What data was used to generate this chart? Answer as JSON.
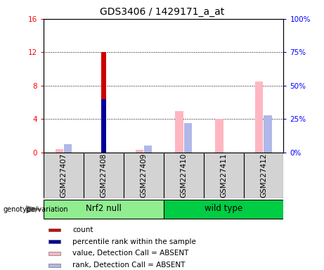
{
  "title": "GDS3406 / 1429171_a_at",
  "samples": [
    "GSM227407",
    "GSM227408",
    "GSM227409",
    "GSM227410",
    "GSM227411",
    "GSM227412"
  ],
  "count_values": [
    0,
    12,
    0,
    0,
    0,
    0
  ],
  "percentile_values": [
    0,
    40.0,
    0,
    0,
    0,
    0
  ],
  "absent_value_values": [
    0.4,
    0,
    0.3,
    5.0,
    4.0,
    8.5
  ],
  "absent_rank_values": [
    6.25,
    0,
    5.0,
    21.875,
    0,
    28.125
  ],
  "ylim_left": [
    0,
    16
  ],
  "ylim_right": [
    0,
    100
  ],
  "yticks_left": [
    0,
    4,
    8,
    12,
    16
  ],
  "yticks_right": [
    0,
    25,
    50,
    75,
    100
  ],
  "yticklabels_left": [
    "0",
    "4",
    "8",
    "12",
    "16"
  ],
  "yticklabels_right": [
    "0%",
    "25%",
    "50%",
    "75%",
    "100%"
  ],
  "bar_width": 0.18,
  "color_count": "#CC0000",
  "color_percentile": "#000099",
  "color_absent_value": "#FFB6C1",
  "color_absent_rank": "#B0B8E8",
  "groups_info": [
    {
      "label": "Nrf2 null",
      "start": 0,
      "end": 3,
      "color": "#90EE90"
    },
    {
      "label": "wild type",
      "start": 3,
      "end": 6,
      "color": "#00CC44"
    }
  ],
  "legend_items": [
    {
      "label": "count",
      "color": "#CC0000"
    },
    {
      "label": "percentile rank within the sample",
      "color": "#000099"
    },
    {
      "label": "value, Detection Call = ABSENT",
      "color": "#FFB6C1"
    },
    {
      "label": "rank, Detection Call = ABSENT",
      "color": "#B0B8E8"
    }
  ],
  "genotype_label": "genotype/variation",
  "sample_box_color": "#D3D3D3",
  "title_fontsize": 10,
  "tick_fontsize": 7.5
}
